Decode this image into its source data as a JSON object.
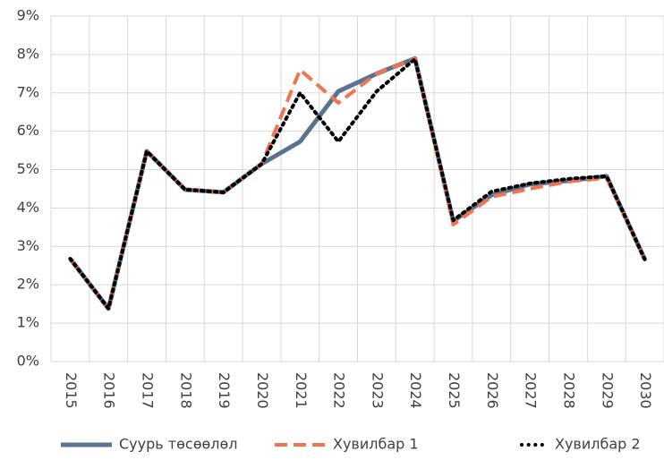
{
  "chart_data": {
    "type": "line",
    "categories": [
      "2015",
      "2016",
      "2017",
      "2018",
      "2019",
      "2020",
      "2021",
      "2022",
      "2023",
      "2024",
      "2025",
      "2026",
      "2027",
      "2028",
      "2029",
      "2030"
    ],
    "series": [
      {
        "name": "Суурь төсөөлөл",
        "color": "#5a7390",
        "style": "solid",
        "values": [
          2.68,
          1.38,
          5.48,
          4.48,
          4.41,
          5.15,
          5.73,
          7.04,
          7.5,
          7.9,
          3.66,
          4.34,
          4.62,
          4.71,
          4.83,
          2.66
        ]
      },
      {
        "name": "Хувилбар 1",
        "color": "#f4734f",
        "style": "dashed",
        "values": [
          2.68,
          1.38,
          5.48,
          4.48,
          4.41,
          5.15,
          7.6,
          6.74,
          7.5,
          7.9,
          3.57,
          4.29,
          4.5,
          4.69,
          4.78,
          2.66
        ]
      },
      {
        "name": "Хувилбар 2",
        "color": "#000000",
        "style": "dotted",
        "values": [
          2.68,
          1.38,
          5.48,
          4.48,
          4.41,
          5.15,
          7.0,
          5.73,
          7.04,
          7.88,
          3.68,
          4.43,
          4.64,
          4.76,
          4.83,
          2.66
        ]
      }
    ],
    "ylim": [
      0,
      9
    ],
    "yticks": [
      {
        "value": 0,
        "label": "0%"
      },
      {
        "value": 1,
        "label": "1%"
      },
      {
        "value": 2,
        "label": "2%"
      },
      {
        "value": 3,
        "label": "3%"
      },
      {
        "value": 4,
        "label": "4%"
      },
      {
        "value": 5,
        "label": "5%"
      },
      {
        "value": 6,
        "label": "6%"
      },
      {
        "value": 7,
        "label": "7%"
      },
      {
        "value": 8,
        "label": "8%"
      },
      {
        "value": 9,
        "label": "9%"
      }
    ],
    "grid": true,
    "legend": "bottom"
  }
}
